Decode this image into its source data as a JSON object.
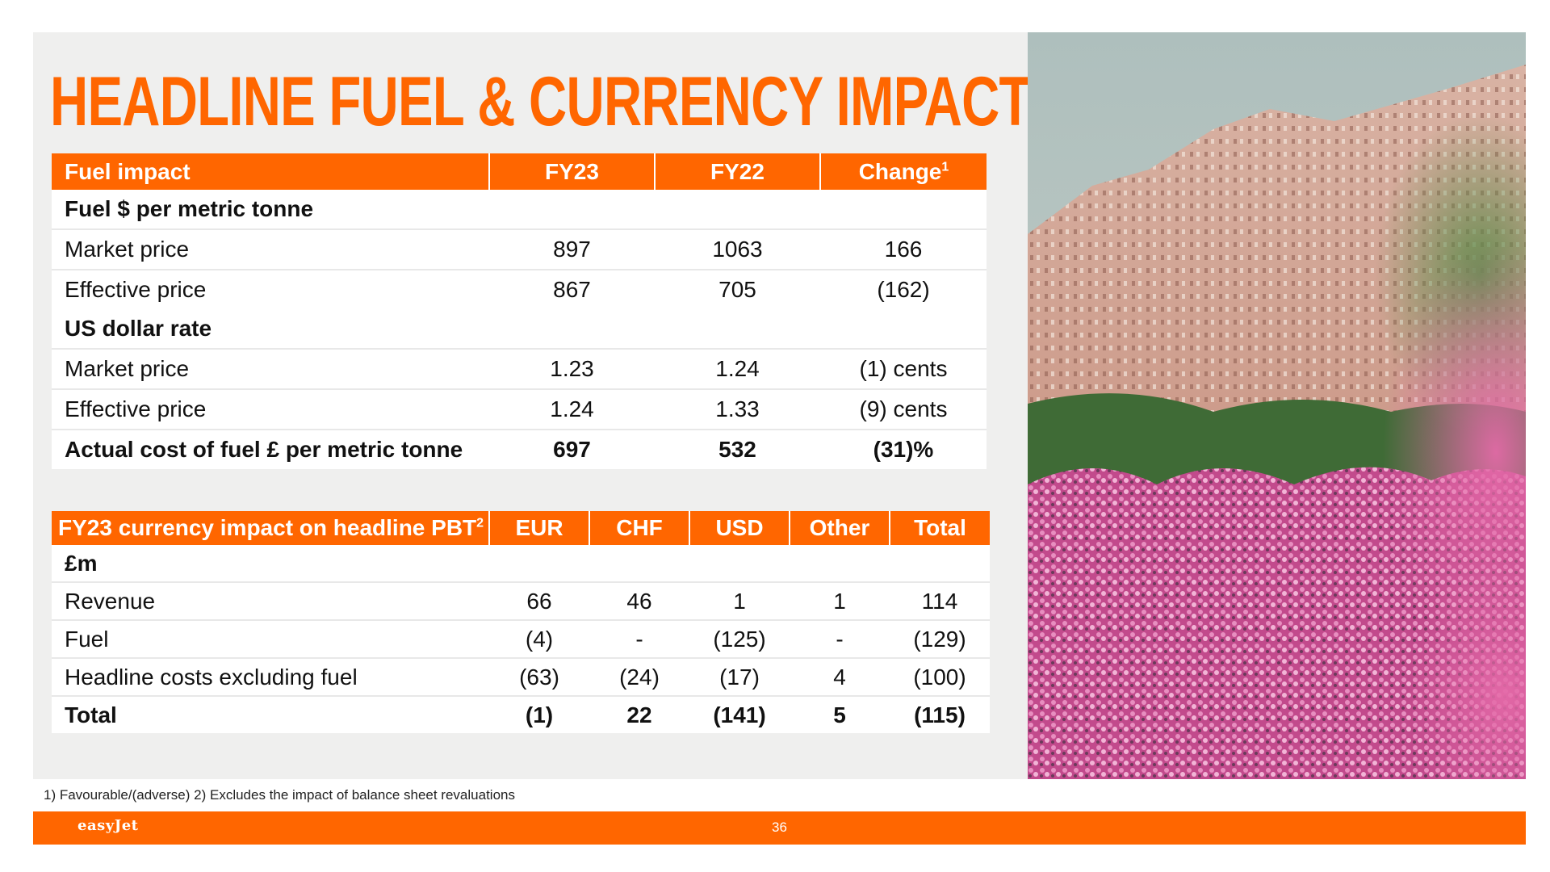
{
  "title": "HEADLINE FUEL & CURRENCY IMPACT",
  "fuel_table": {
    "headers": [
      "Fuel impact",
      "FY23",
      "FY22",
      "Change"
    ],
    "change_sup": "1",
    "rows": [
      {
        "label": "Fuel $ per metric tonne",
        "values": [
          "",
          "",
          ""
        ]
      },
      {
        "label": "Market price",
        "values": [
          "897",
          "1063",
          "166"
        ]
      },
      {
        "label": "Effective price",
        "values": [
          "867",
          "705",
          "(162)"
        ]
      },
      {
        "label": "US dollar rate",
        "values": [
          "",
          "",
          ""
        ]
      },
      {
        "label": "Market price",
        "values": [
          "1.23",
          "1.24",
          "(1) cents"
        ]
      },
      {
        "label": "Effective price",
        "values": [
          "1.24",
          "1.33",
          "(9) cents"
        ]
      },
      {
        "label": "Actual cost of fuel £ per metric tonne",
        "values": [
          "697",
          "532",
          "(31)%"
        ]
      }
    ]
  },
  "currency_table": {
    "headers": [
      "FY23 currency impact on headline PBT",
      "EUR",
      "CHF",
      "USD",
      "Other",
      "Total"
    ],
    "title_sup": "2",
    "rows": [
      {
        "label": "£m",
        "values": [
          "",
          "",
          "",
          "",
          ""
        ]
      },
      {
        "label": "Revenue",
        "values": [
          "66",
          "46",
          "1",
          "1",
          "114"
        ]
      },
      {
        "label": "Fuel",
        "values": [
          "(4)",
          "-",
          "(125)",
          "-",
          "(129)"
        ]
      },
      {
        "label": "Headline costs excluding fuel",
        "values": [
          "(63)",
          "(24)",
          "(17)",
          "4",
          "(100)"
        ]
      },
      {
        "label": "Total",
        "values": [
          "(1)",
          "22",
          "(141)",
          "5",
          "(115)"
        ]
      }
    ]
  },
  "footnote": "1) Favourable/(adverse) 2) Excludes the impact of balance sheet revaluations",
  "footer": {
    "logo": "easyJet",
    "page_number": "36"
  },
  "colors": {
    "accent": "#ff6600",
    "panel": "#efefee"
  }
}
